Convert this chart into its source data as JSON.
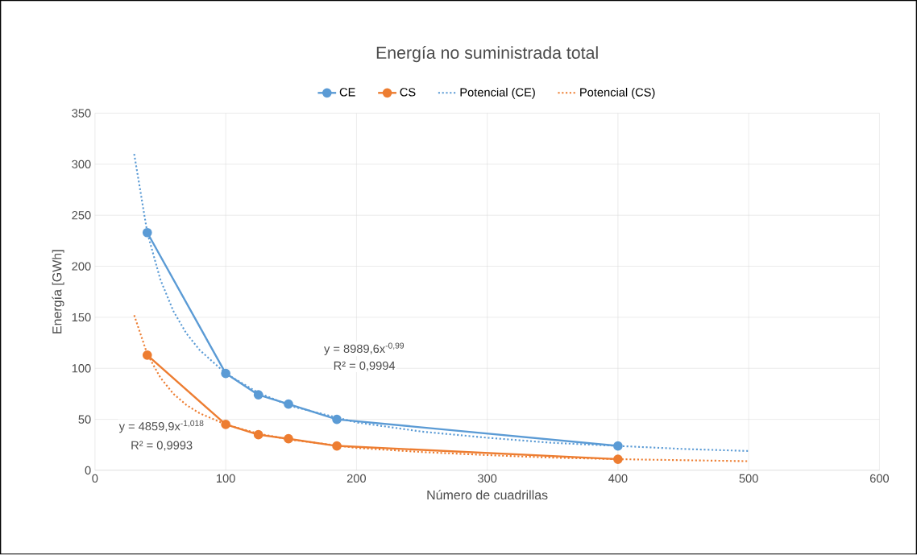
{
  "chart_data": {
    "type": "line",
    "title": "Energía no suministrada total",
    "xlabel": "Número de cuadrillas",
    "ylabel": "Energía [GWh]",
    "xlim": [
      0,
      600
    ],
    "xticks": [
      0,
      100,
      200,
      300,
      400,
      500,
      600
    ],
    "ylim": [
      0,
      350
    ],
    "yticks": [
      0,
      50,
      100,
      150,
      200,
      250,
      300,
      350
    ],
    "grid": true,
    "legend": "top",
    "series": [
      {
        "name": "CE",
        "color": "#5b9bd5",
        "marker": "circle",
        "line_style": "solid",
        "x": [
          40,
          100,
          125,
          148,
          185,
          400
        ],
        "values": [
          233,
          95,
          74,
          65,
          50,
          24
        ]
      },
      {
        "name": "CS",
        "color": "#ed7d31",
        "marker": "circle",
        "line_style": "solid",
        "x": [
          40,
          100,
          125,
          148,
          185,
          400
        ],
        "values": [
          113,
          45,
          35,
          31,
          24,
          11
        ]
      },
      {
        "name": "Potencial (CE)",
        "color": "#5b9bd5",
        "marker": "none",
        "line_style": "dotted",
        "x": [
          30,
          40,
          50,
          60,
          70,
          80,
          100,
          125,
          150,
          200,
          250,
          300,
          350,
          400,
          450,
          500
        ],
        "values": [
          310,
          233,
          187,
          156,
          134,
          118,
          95,
          76,
          63,
          47,
          38,
          32,
          27,
          24,
          21,
          19
        ]
      },
      {
        "name": "Potencial (CS)",
        "color": "#ed7d31",
        "marker": "none",
        "line_style": "dotted",
        "x": [
          30,
          40,
          50,
          60,
          70,
          80,
          100,
          125,
          150,
          200,
          250,
          300,
          350,
          400,
          450,
          500
        ],
        "values": [
          152,
          114,
          91,
          75,
          64,
          56,
          45,
          36,
          30,
          22,
          18,
          15,
          12.5,
          11,
          10,
          9
        ]
      }
    ],
    "annotations": [
      "y = 8989,6x$^{-0,99}$",
      "R² = 0,9994",
      "y = 4859,9x$^{-1,018}$",
      "R² = 0,9993"
    ]
  }
}
